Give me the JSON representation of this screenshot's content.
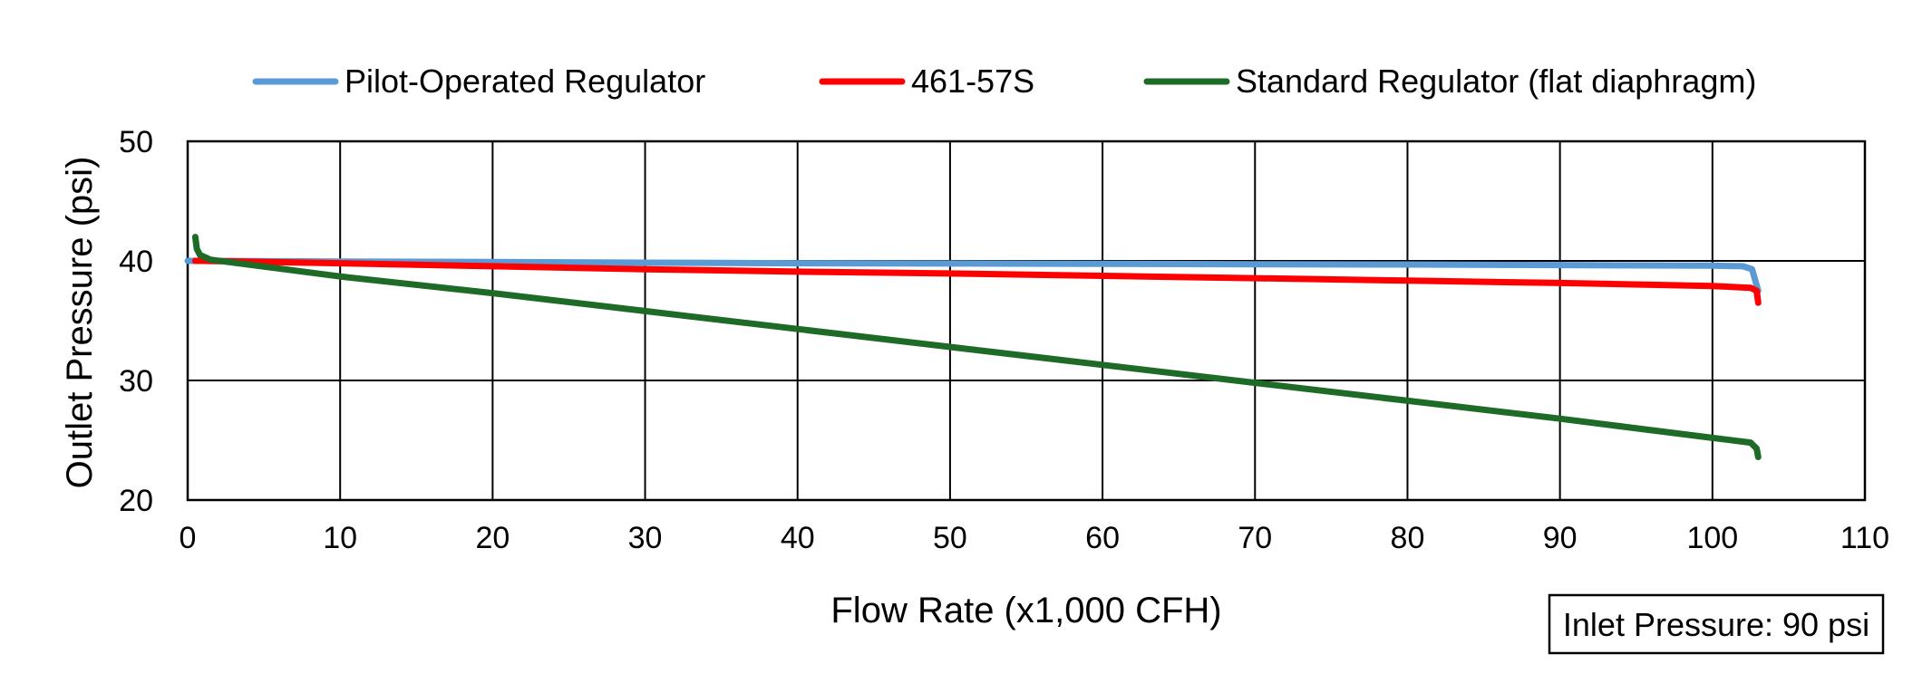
{
  "chart_data": {
    "type": "line",
    "title": "",
    "xlabel": "Flow Rate (x1,000 CFH)",
    "ylabel": "Outlet Pressure (psi)",
    "xlim": [
      0,
      110
    ],
    "ylim": [
      20,
      50
    ],
    "xticks": [
      "0",
      "10",
      "20",
      "30",
      "40",
      "50",
      "60",
      "70",
      "80",
      "90",
      "100",
      "110"
    ],
    "yticks": [
      "20",
      "30",
      "40",
      "50"
    ],
    "grid": true,
    "legend_position": "top",
    "annotation": "Inlet Pressure: 90 psi",
    "series": [
      {
        "name": "Pilot-Operated Regulator",
        "color": "#5B9BD5",
        "x": [
          0,
          1,
          10,
          20,
          30,
          40,
          50,
          60,
          70,
          80,
          90,
          100,
          102.0,
          102.6,
          103.0
        ],
        "y": [
          40.0,
          40.0,
          39.95,
          39.9,
          39.85,
          39.8,
          39.78,
          39.75,
          39.72,
          39.7,
          39.65,
          39.6,
          39.55,
          39.3,
          37.5
        ]
      },
      {
        "name": "461-57S",
        "color": "#FF0000",
        "x": [
          0.5,
          1,
          10,
          20,
          30,
          40,
          50,
          60,
          70,
          80,
          90,
          100,
          102.5,
          102.9,
          103.0
        ],
        "y": [
          40.0,
          40.0,
          39.8,
          39.55,
          39.3,
          39.1,
          38.95,
          38.75,
          38.55,
          38.35,
          38.15,
          37.9,
          37.75,
          37.5,
          36.5
        ]
      },
      {
        "name": "Standard Regulator (flat diaphragm)",
        "color": "#1E6B28",
        "x": [
          0.5,
          0.6,
          0.8,
          1.5,
          10,
          20,
          30,
          40,
          50,
          60,
          70,
          80,
          90,
          100,
          102.5,
          102.9,
          103.0
        ],
        "y": [
          42.0,
          41.0,
          40.5,
          40.1,
          38.7,
          37.3,
          35.8,
          34.3,
          32.8,
          31.3,
          29.8,
          28.3,
          26.8,
          25.2,
          24.8,
          24.3,
          23.6
        ]
      }
    ]
  }
}
